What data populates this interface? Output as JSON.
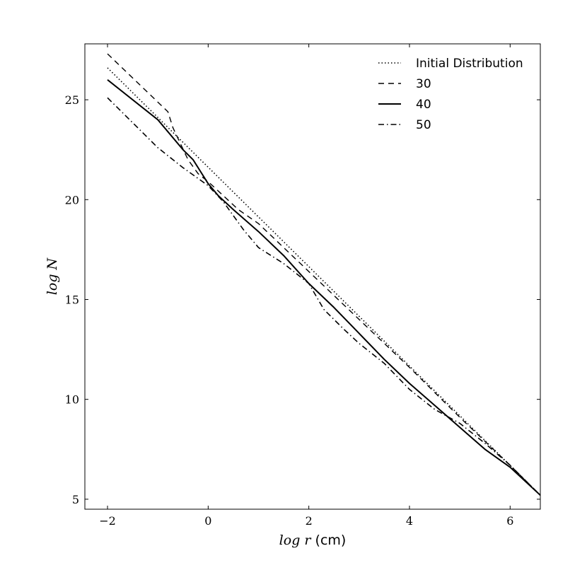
{
  "chart_data": {
    "type": "line",
    "xlabel_var": "log r",
    "xlabel_unit": "(cm)",
    "ylabel": "log N",
    "xlim": [
      -2.45,
      6.6
    ],
    "ylim": [
      4.5,
      27.8
    ],
    "xticks": [
      -2,
      0,
      2,
      4,
      6
    ],
    "yticks": [
      5,
      10,
      15,
      20,
      25
    ],
    "xtick_labels": [
      "−2",
      "0",
      "2",
      "4",
      "6"
    ],
    "ytick_labels": [
      "5",
      "10",
      "15",
      "20",
      "25"
    ],
    "grid": false,
    "legend_position": "top-right",
    "series": [
      {
        "name": "Initial Distribution",
        "style": "dotted",
        "x": [
          -2.0,
          6.6
        ],
        "y": [
          26.6,
          5.2
        ]
      },
      {
        "name": "30",
        "style": "dashed",
        "x": [
          -2.0,
          -0.8,
          -0.7,
          -0.55,
          -0.4,
          -0.2,
          0.0,
          0.3,
          0.6,
          1.0,
          2.0,
          3.0,
          4.0,
          5.0,
          6.0,
          6.6
        ],
        "y": [
          27.3,
          24.4,
          23.6,
          22.8,
          22.0,
          21.3,
          20.9,
          20.2,
          19.5,
          18.8,
          16.4,
          14.0,
          11.6,
          9.1,
          6.7,
          5.2
        ]
      },
      {
        "name": "40",
        "style": "solid",
        "x": [
          -2.0,
          -1.0,
          -0.5,
          -0.3,
          -0.1,
          0.0,
          0.2,
          0.5,
          1.0,
          1.5,
          2.0,
          2.5,
          3.0,
          3.5,
          4.0,
          4.5,
          5.0,
          5.5,
          6.0,
          6.6
        ],
        "y": [
          26.0,
          24.0,
          22.5,
          22.0,
          21.2,
          20.8,
          20.2,
          19.5,
          18.4,
          17.2,
          15.8,
          14.6,
          13.3,
          12.0,
          10.8,
          9.7,
          8.6,
          7.5,
          6.6,
          5.2
        ]
      },
      {
        "name": "50",
        "style": "dashdot",
        "x": [
          -2.0,
          -1.0,
          -0.5,
          0.0,
          0.3,
          0.7,
          1.0,
          1.5,
          2.0,
          2.3,
          2.7,
          3.0,
          3.5,
          4.0,
          4.5,
          5.0,
          5.5,
          6.0,
          6.6
        ],
        "y": [
          25.1,
          22.6,
          21.6,
          20.7,
          19.9,
          18.5,
          17.6,
          16.8,
          15.8,
          14.5,
          13.5,
          12.8,
          11.8,
          10.5,
          9.5,
          8.8,
          7.8,
          6.7,
          5.2
        ]
      }
    ]
  }
}
